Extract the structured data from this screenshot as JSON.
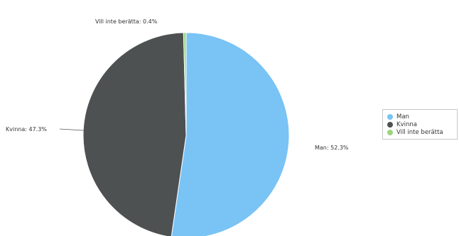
{
  "chart_data": {
    "type": "pie",
    "title": "",
    "slices": [
      {
        "label": "Man",
        "value": 52.3,
        "color": "#79c3f5",
        "callout": "Man: 52.3%"
      },
      {
        "label": "Kvinna",
        "value": 47.3,
        "color": "#4d5152",
        "callout": "Kvinna: 47.3%"
      },
      {
        "label": "Vill inte berätta",
        "value": 0.4,
        "color": "#9ad67d",
        "callout": "Vill inte berätta: 0.4%"
      }
    ],
    "legend": {
      "position": "right",
      "items": [
        "Man",
        "Kvinna",
        "Vill inte berätta"
      ]
    }
  }
}
